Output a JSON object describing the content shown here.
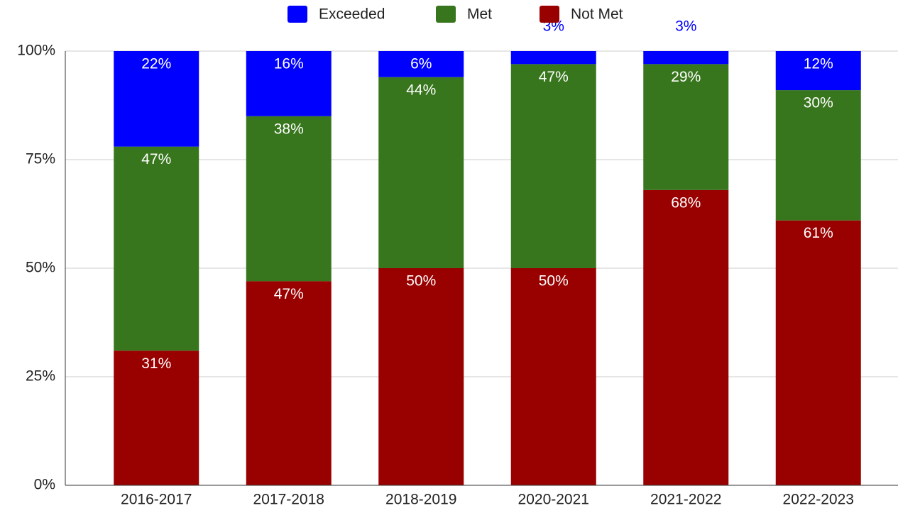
{
  "chart_data": {
    "type": "stacked_bar",
    "categories": [
      "2016-2017",
      "2017-2018",
      "2018-2019",
      "2020-2021",
      "2021-2022",
      "2022-2023"
    ],
    "series": [
      {
        "name": "Not Met",
        "color": "#990000",
        "values": [
          31,
          47,
          50,
          50,
          68,
          61
        ],
        "value_labels": [
          "31%",
          "47%",
          "50%",
          "50%",
          "68%",
          "61%"
        ]
      },
      {
        "name": "Met",
        "color": "#38761d",
        "values": [
          47,
          38,
          44,
          47,
          29,
          30
        ],
        "value_labels": [
          "47%",
          "38%",
          "44%",
          "47%",
          "29%",
          "30%"
        ]
      },
      {
        "name": "Exceeded",
        "color": "#0000ff",
        "values": [
          22,
          16,
          6,
          3,
          3,
          12
        ],
        "value_labels": [
          "22%",
          "16%",
          "6%",
          "3%",
          "3%",
          "12%"
        ]
      }
    ],
    "legend_order": [
      "Exceeded",
      "Met",
      "Not Met"
    ],
    "ylim": [
      0,
      100
    ],
    "yticks": [
      {
        "value": 0,
        "label": "0%"
      },
      {
        "value": 25,
        "label": "25%"
      },
      {
        "value": 50,
        "label": "50%"
      },
      {
        "value": 75,
        "label": "75%"
      },
      {
        "value": 100,
        "label": "100%"
      }
    ],
    "grid": true,
    "legend": "top"
  }
}
